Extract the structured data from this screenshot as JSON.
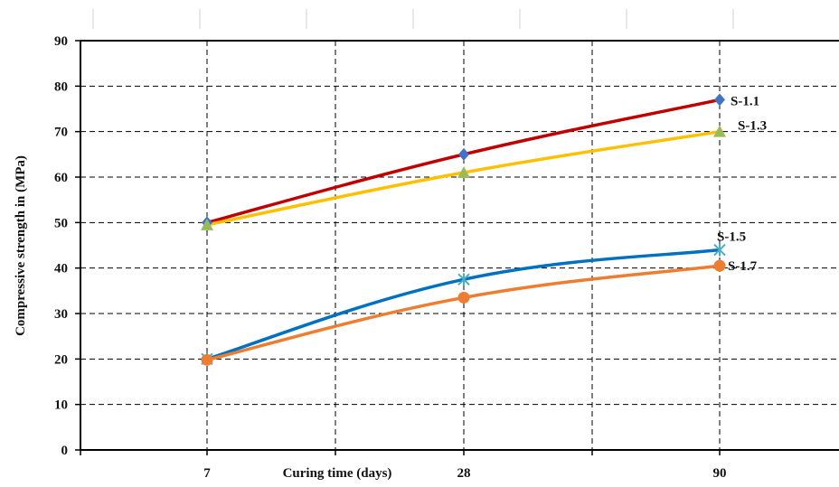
{
  "chart_data": {
    "type": "line",
    "xlabel": "Curing time (days)",
    "ylabel": "Compressive strength in (MPa)",
    "x_ticks": [
      "7",
      "28",
      "90"
    ],
    "x": [
      7,
      28,
      90
    ],
    "ylim": [
      0,
      90
    ],
    "y_ticks": [
      "0",
      "10",
      "20",
      "30",
      "40",
      "50",
      "60",
      "70",
      "80",
      "90"
    ],
    "grid": true,
    "series": [
      {
        "name": "S-1.1",
        "values": [
          50,
          65,
          77
        ],
        "color": "#C00000",
        "marker_color": "#4472C4",
        "marker": "diamond"
      },
      {
        "name": "S-1.3",
        "values": [
          49.5,
          61,
          70
        ],
        "color": "#FFC000",
        "marker_color": "#9BBB59",
        "marker": "triangle"
      },
      {
        "name": "S-1.5",
        "values": [
          20,
          37.5,
          44
        ],
        "color": "#0070C0",
        "marker_color": "#4BACC6",
        "marker": "star"
      },
      {
        "name": "S-1.7",
        "values": [
          19.8,
          33.5,
          40.5
        ],
        "color": "#ED7D31",
        "marker_color": "#ED7D31",
        "marker": "circle"
      }
    ]
  }
}
